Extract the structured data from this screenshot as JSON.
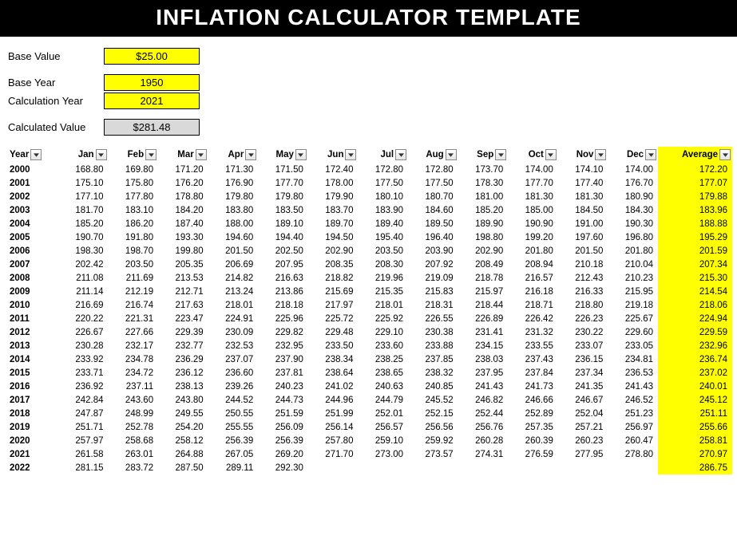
{
  "title": "INFLATION CALCULATOR TEMPLATE",
  "inputs": {
    "base_value_label": "Base Value",
    "base_value": "$25.00",
    "base_year_label": "Base Year",
    "base_year": "1950",
    "calc_year_label": "Calculation Year",
    "calc_year": "2021",
    "calc_value_label": "Calculated Value",
    "calc_value": "$281.48"
  },
  "colors": {
    "input_highlight": "#ffff00",
    "output_cell": "#d9d9d9",
    "title_bg": "#000000",
    "title_fg": "#ffffff",
    "avg_highlight": "#ffff00"
  },
  "table": {
    "columns": [
      "Year",
      "Jan",
      "Feb",
      "Mar",
      "Apr",
      "May",
      "Jun",
      "Jul",
      "Aug",
      "Sep",
      "Oct",
      "Nov",
      "Dec",
      "Average"
    ],
    "rows": [
      [
        "2000",
        "168.80",
        "169.80",
        "171.20",
        "171.30",
        "171.50",
        "172.40",
        "172.80",
        "172.80",
        "173.70",
        "174.00",
        "174.10",
        "174.00",
        "172.20"
      ],
      [
        "2001",
        "175.10",
        "175.80",
        "176.20",
        "176.90",
        "177.70",
        "178.00",
        "177.50",
        "177.50",
        "178.30",
        "177.70",
        "177.40",
        "176.70",
        "177.07"
      ],
      [
        "2002",
        "177.10",
        "177.80",
        "178.80",
        "179.80",
        "179.80",
        "179.90",
        "180.10",
        "180.70",
        "181.00",
        "181.30",
        "181.30",
        "180.90",
        "179.88"
      ],
      [
        "2003",
        "181.70",
        "183.10",
        "184.20",
        "183.80",
        "183.50",
        "183.70",
        "183.90",
        "184.60",
        "185.20",
        "185.00",
        "184.50",
        "184.30",
        "183.96"
      ],
      [
        "2004",
        "185.20",
        "186.20",
        "187.40",
        "188.00",
        "189.10",
        "189.70",
        "189.40",
        "189.50",
        "189.90",
        "190.90",
        "191.00",
        "190.30",
        "188.88"
      ],
      [
        "2005",
        "190.70",
        "191.80",
        "193.30",
        "194.60",
        "194.40",
        "194.50",
        "195.40",
        "196.40",
        "198.80",
        "199.20",
        "197.60",
        "196.80",
        "195.29"
      ],
      [
        "2006",
        "198.30",
        "198.70",
        "199.80",
        "201.50",
        "202.50",
        "202.90",
        "203.50",
        "203.90",
        "202.90",
        "201.80",
        "201.50",
        "201.80",
        "201.59"
      ],
      [
        "2007",
        "202.42",
        "203.50",
        "205.35",
        "206.69",
        "207.95",
        "208.35",
        "208.30",
        "207.92",
        "208.49",
        "208.94",
        "210.18",
        "210.04",
        "207.34"
      ],
      [
        "2008",
        "211.08",
        "211.69",
        "213.53",
        "214.82",
        "216.63",
        "218.82",
        "219.96",
        "219.09",
        "218.78",
        "216.57",
        "212.43",
        "210.23",
        "215.30"
      ],
      [
        "2009",
        "211.14",
        "212.19",
        "212.71",
        "213.24",
        "213.86",
        "215.69",
        "215.35",
        "215.83",
        "215.97",
        "216.18",
        "216.33",
        "215.95",
        "214.54"
      ],
      [
        "2010",
        "216.69",
        "216.74",
        "217.63",
        "218.01",
        "218.18",
        "217.97",
        "218.01",
        "218.31",
        "218.44",
        "218.71",
        "218.80",
        "219.18",
        "218.06"
      ],
      [
        "2011",
        "220.22",
        "221.31",
        "223.47",
        "224.91",
        "225.96",
        "225.72",
        "225.92",
        "226.55",
        "226.89",
        "226.42",
        "226.23",
        "225.67",
        "224.94"
      ],
      [
        "2012",
        "226.67",
        "227.66",
        "229.39",
        "230.09",
        "229.82",
        "229.48",
        "229.10",
        "230.38",
        "231.41",
        "231.32",
        "230.22",
        "229.60",
        "229.59"
      ],
      [
        "2013",
        "230.28",
        "232.17",
        "232.77",
        "232.53",
        "232.95",
        "233.50",
        "233.60",
        "233.88",
        "234.15",
        "233.55",
        "233.07",
        "233.05",
        "232.96"
      ],
      [
        "2014",
        "233.92",
        "234.78",
        "236.29",
        "237.07",
        "237.90",
        "238.34",
        "238.25",
        "237.85",
        "238.03",
        "237.43",
        "236.15",
        "234.81",
        "236.74"
      ],
      [
        "2015",
        "233.71",
        "234.72",
        "236.12",
        "236.60",
        "237.81",
        "238.64",
        "238.65",
        "238.32",
        "237.95",
        "237.84",
        "237.34",
        "236.53",
        "237.02"
      ],
      [
        "2016",
        "236.92",
        "237.11",
        "238.13",
        "239.26",
        "240.23",
        "241.02",
        "240.63",
        "240.85",
        "241.43",
        "241.73",
        "241.35",
        "241.43",
        "240.01"
      ],
      [
        "2017",
        "242.84",
        "243.60",
        "243.80",
        "244.52",
        "244.73",
        "244.96",
        "244.79",
        "245.52",
        "246.82",
        "246.66",
        "246.67",
        "246.52",
        "245.12"
      ],
      [
        "2018",
        "247.87",
        "248.99",
        "249.55",
        "250.55",
        "251.59",
        "251.99",
        "252.01",
        "252.15",
        "252.44",
        "252.89",
        "252.04",
        "251.23",
        "251.11"
      ],
      [
        "2019",
        "251.71",
        "252.78",
        "254.20",
        "255.55",
        "256.09",
        "256.14",
        "256.57",
        "256.56",
        "256.76",
        "257.35",
        "257.21",
        "256.97",
        "255.66"
      ],
      [
        "2020",
        "257.97",
        "258.68",
        "258.12",
        "256.39",
        "256.39",
        "257.80",
        "259.10",
        "259.92",
        "260.28",
        "260.39",
        "260.23",
        "260.47",
        "258.81"
      ],
      [
        "2021",
        "261.58",
        "263.01",
        "264.88",
        "267.05",
        "269.20",
        "271.70",
        "273.00",
        "273.57",
        "274.31",
        "276.59",
        "277.95",
        "278.80",
        "270.97"
      ],
      [
        "2022",
        "281.15",
        "283.72",
        "287.50",
        "289.11",
        "292.30",
        "",
        "",
        "",
        "",
        "",
        "",
        "",
        "286.75"
      ]
    ]
  }
}
